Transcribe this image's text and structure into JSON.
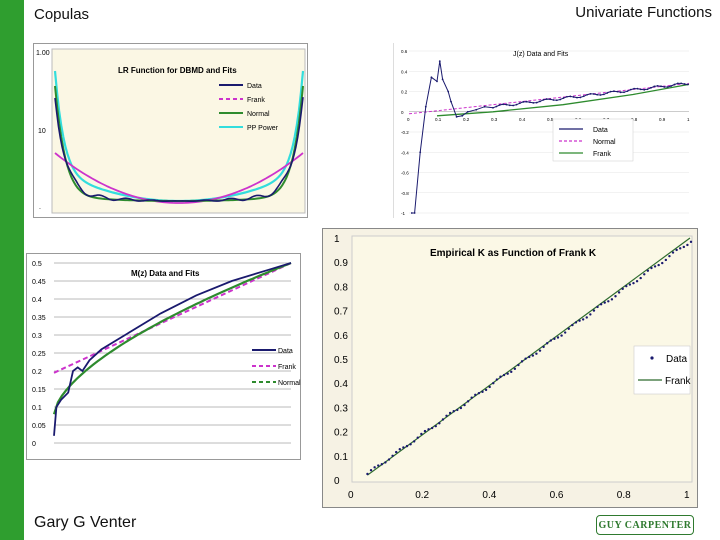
{
  "slide": {
    "title_left": "Copulas",
    "title_right": "Univariate Functions",
    "footer": "Gary G Venter",
    "logo_text": "GUY CARPENTER",
    "accent_color": "#2f9e2f"
  },
  "chart_data": [
    {
      "type": "line",
      "title": "LR Function for DBMD and Fits",
      "y_ticks": [
        "1.00",
        "10",
        "."
      ],
      "series": [
        {
          "name": "Data",
          "color": "#1a1a6e"
        },
        {
          "name": "Frank",
          "color": "#cc33cc"
        },
        {
          "name": "Normal",
          "color": "#2e8b2e"
        },
        {
          "name": "PP Power",
          "color": "#33dddd"
        }
      ]
    },
    {
      "type": "line",
      "title": "J(z) Data and Fits",
      "y_ticks": [
        "0.6",
        "0.4",
        "0.2",
        "0",
        "-0.2",
        "-0.4",
        "-0.6",
        "-0.8",
        "-1"
      ],
      "x_ticks": [
        "0",
        "0.1",
        "0.2",
        "0.3",
        "0.4",
        "0.5",
        "0.6",
        "0.7",
        "0.8",
        "0.9",
        "1"
      ],
      "series": [
        {
          "name": "Data",
          "color": "#1a1a6e"
        },
        {
          "name": "Normal",
          "color": "#cc33cc"
        },
        {
          "name": "Frank",
          "color": "#2e8b2e"
        }
      ]
    },
    {
      "type": "line",
      "title": "M(z) Data and Fits",
      "y_ticks": [
        "0.5",
        "0.45",
        "0.4",
        "0.35",
        "0.3",
        "0.25",
        "0.2",
        "0.15",
        "0.1",
        "0.05",
        "0"
      ],
      "ylim": [
        0,
        0.5
      ],
      "series": [
        {
          "name": "Data",
          "color": "#1a1a6e"
        },
        {
          "name": "Frank",
          "color": "#cc33cc"
        },
        {
          "name": "Normal",
          "color": "#2e8b2e"
        }
      ]
    },
    {
      "type": "scatter",
      "title": "Empirical K as Function of Frank K",
      "x_ticks": [
        "0",
        "0.2",
        "0.4",
        "0.6",
        "0.8",
        "1"
      ],
      "y_ticks": [
        "1",
        "0.9",
        "0.8",
        "0.7",
        "0.6",
        "0.5",
        "0.4",
        "0.3",
        "0.2",
        "0.1",
        "0"
      ],
      "xlim": [
        0,
        1
      ],
      "ylim": [
        0,
        1
      ],
      "series": [
        {
          "name": "Data",
          "color": "#1a1a6e"
        },
        {
          "name": "Frank",
          "color": "#2e6b2e"
        }
      ]
    }
  ]
}
